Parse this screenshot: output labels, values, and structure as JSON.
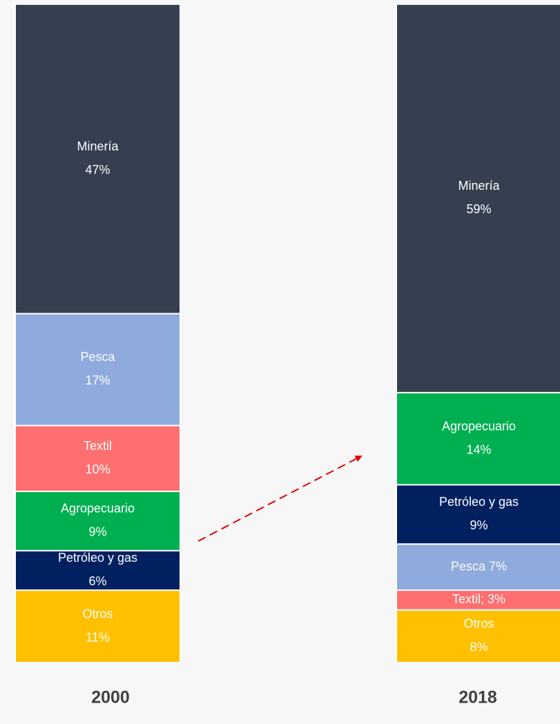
{
  "chart_data": {
    "type": "stacked_bar",
    "ylim": [
      0,
      100
    ],
    "bars": [
      {
        "category": "2000",
        "segments": [
          {
            "name": "Otros",
            "value": 11,
            "value_label": "11%",
            "color": "#ffc000"
          },
          {
            "name": "Petróleo y gas",
            "value": 6,
            "value_label": "6%",
            "color": "#002060"
          },
          {
            "name": "Agropecuario",
            "value": 9,
            "value_label": "9%",
            "color": "#00b050"
          },
          {
            "name": "Textil",
            "value": 10,
            "value_label": "10%",
            "color": "#ff6f6f"
          },
          {
            "name": "Pesca",
            "value": 17,
            "value_label": "17%",
            "color": "#8faadc"
          },
          {
            "name": "Minería",
            "value": 47,
            "value_label": "47%",
            "color": "#353f50"
          }
        ]
      },
      {
        "category": "2018",
        "segments": [
          {
            "name": "Otros",
            "value": 8,
            "value_label": "8%",
            "color": "#ffc000"
          },
          {
            "label": "Textil; 3%",
            "value": 3,
            "color": "#ff6f6f"
          },
          {
            "label": "Pesca 7%",
            "value": 7,
            "color": "#8faadc"
          },
          {
            "name": "Petróleo y gas",
            "value": 9,
            "value_label": "9%",
            "color": "#002060"
          },
          {
            "name": "Agropecuario",
            "value": 14,
            "value_label": "14%",
            "color": "#00b050"
          },
          {
            "name": "Minería",
            "value": 59,
            "value_label": "59%",
            "color": "#353f50"
          }
        ]
      }
    ]
  }
}
